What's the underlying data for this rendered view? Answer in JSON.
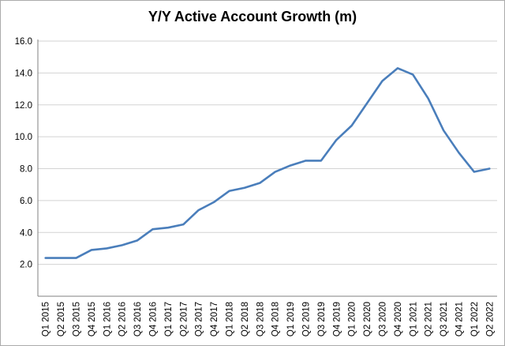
{
  "title": "Y/Y Active Account Growth (m)",
  "chart_data": {
    "type": "line",
    "title": "Y/Y Active Account Growth (m)",
    "xlabel": "",
    "ylabel": "",
    "legend": "none",
    "grid": "horizontal",
    "ylim": [
      0,
      16
    ],
    "yticks": [
      2,
      4,
      6,
      8,
      10,
      12,
      14,
      16
    ],
    "ytick_labels": [
      "2.0",
      "4.0",
      "6.0",
      "8.0",
      "10.0",
      "12.0",
      "14.0",
      "16.0"
    ],
    "categories": [
      "Q1 2015",
      "Q2 2015",
      "Q3 2015",
      "Q4 2015",
      "Q1 2016",
      "Q2 2016",
      "Q3 2016",
      "Q4 2016",
      "Q1 2017",
      "Q2 2017",
      "Q3 2017",
      "Q4 2017",
      "Q1 2018",
      "Q2 2018",
      "Q3 2018",
      "Q4 2018",
      "Q1 2019",
      "Q2 2019",
      "Q3 2019",
      "Q4 2019",
      "Q1 2020",
      "Q2 2020",
      "Q3 2020",
      "Q4 2020",
      "Q1 2021",
      "Q2 2021",
      "Q3 2021",
      "Q4 2021",
      "Q1 2022",
      "Q2 2022"
    ],
    "series": [
      {
        "name": "Y/Y Active Account Growth",
        "values": [
          2.4,
          2.4,
          2.4,
          2.9,
          3.0,
          3.2,
          3.5,
          4.2,
          4.3,
          4.5,
          5.4,
          5.9,
          6.6,
          6.8,
          7.1,
          7.8,
          8.2,
          8.5,
          8.5,
          9.8,
          10.7,
          12.1,
          13.5,
          14.3,
          13.9,
          12.4,
          10.4,
          9.0,
          7.8,
          8.0
        ]
      }
    ],
    "colors": {
      "line": "#4a7ebb",
      "grid": "#d3d3d3",
      "axis": "#808080",
      "text": "#000000",
      "background": "#ffffff"
    }
  }
}
